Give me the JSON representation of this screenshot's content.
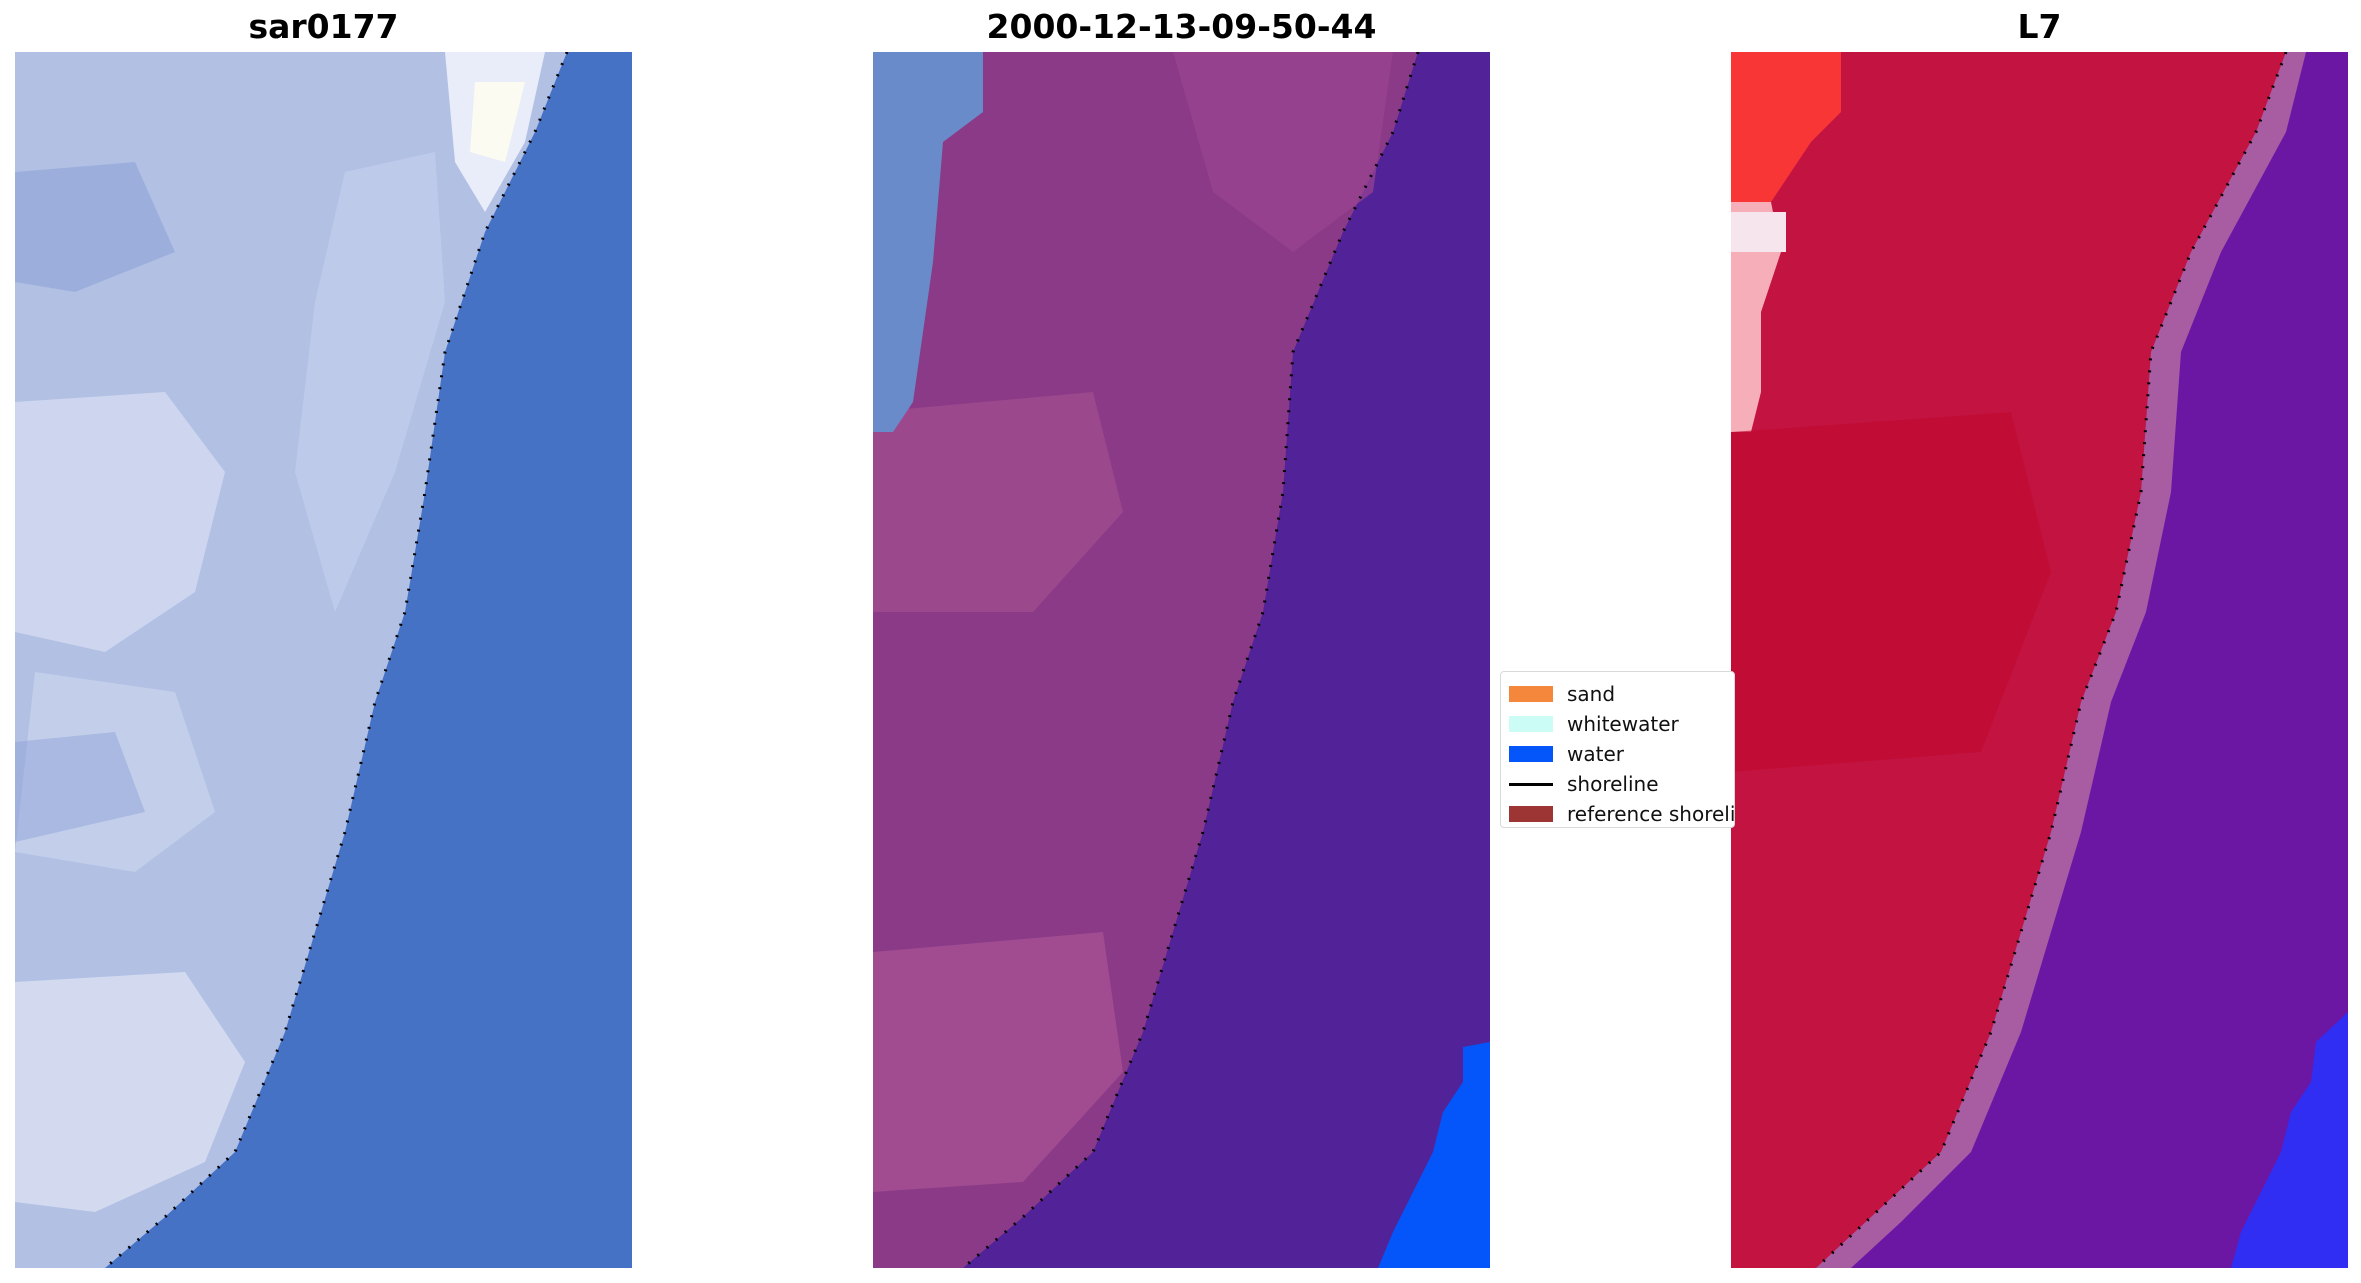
{
  "panels": [
    {
      "title": "sar0177",
      "image": "sar-pan-rgb-tile"
    },
    {
      "title": "2000-12-13-09-50-44",
      "image": "classified-rgb-tile"
    },
    {
      "title": "L7",
      "image": "landsat7-false-color-tile"
    }
  ],
  "legend": {
    "placement": "center",
    "items": [
      {
        "label": "sand",
        "color": "#f4873c",
        "kind": "patch"
      },
      {
        "label": "whitewater",
        "color": "#ccfcf6",
        "kind": "patch"
      },
      {
        "label": "water",
        "color": "#0456fb",
        "kind": "patch"
      },
      {
        "label": "shoreline",
        "color": "#000000",
        "kind": "line"
      },
      {
        "label": "reference shoreline",
        "color": "#9c3533",
        "kind": "patch"
      }
    ]
  },
  "colors": {
    "panel1_land": "#b9c6e6",
    "panel1_water": "#4672c6",
    "panel2_land": "#8a3a86",
    "panel2_water": "#512298",
    "panel2_water_class": "#0456fb",
    "panel3_land": "#c31341",
    "panel3_water": "#6b17a4",
    "panel3_water_class": "#2f2ef2",
    "shoreline_dots": "#000000"
  }
}
